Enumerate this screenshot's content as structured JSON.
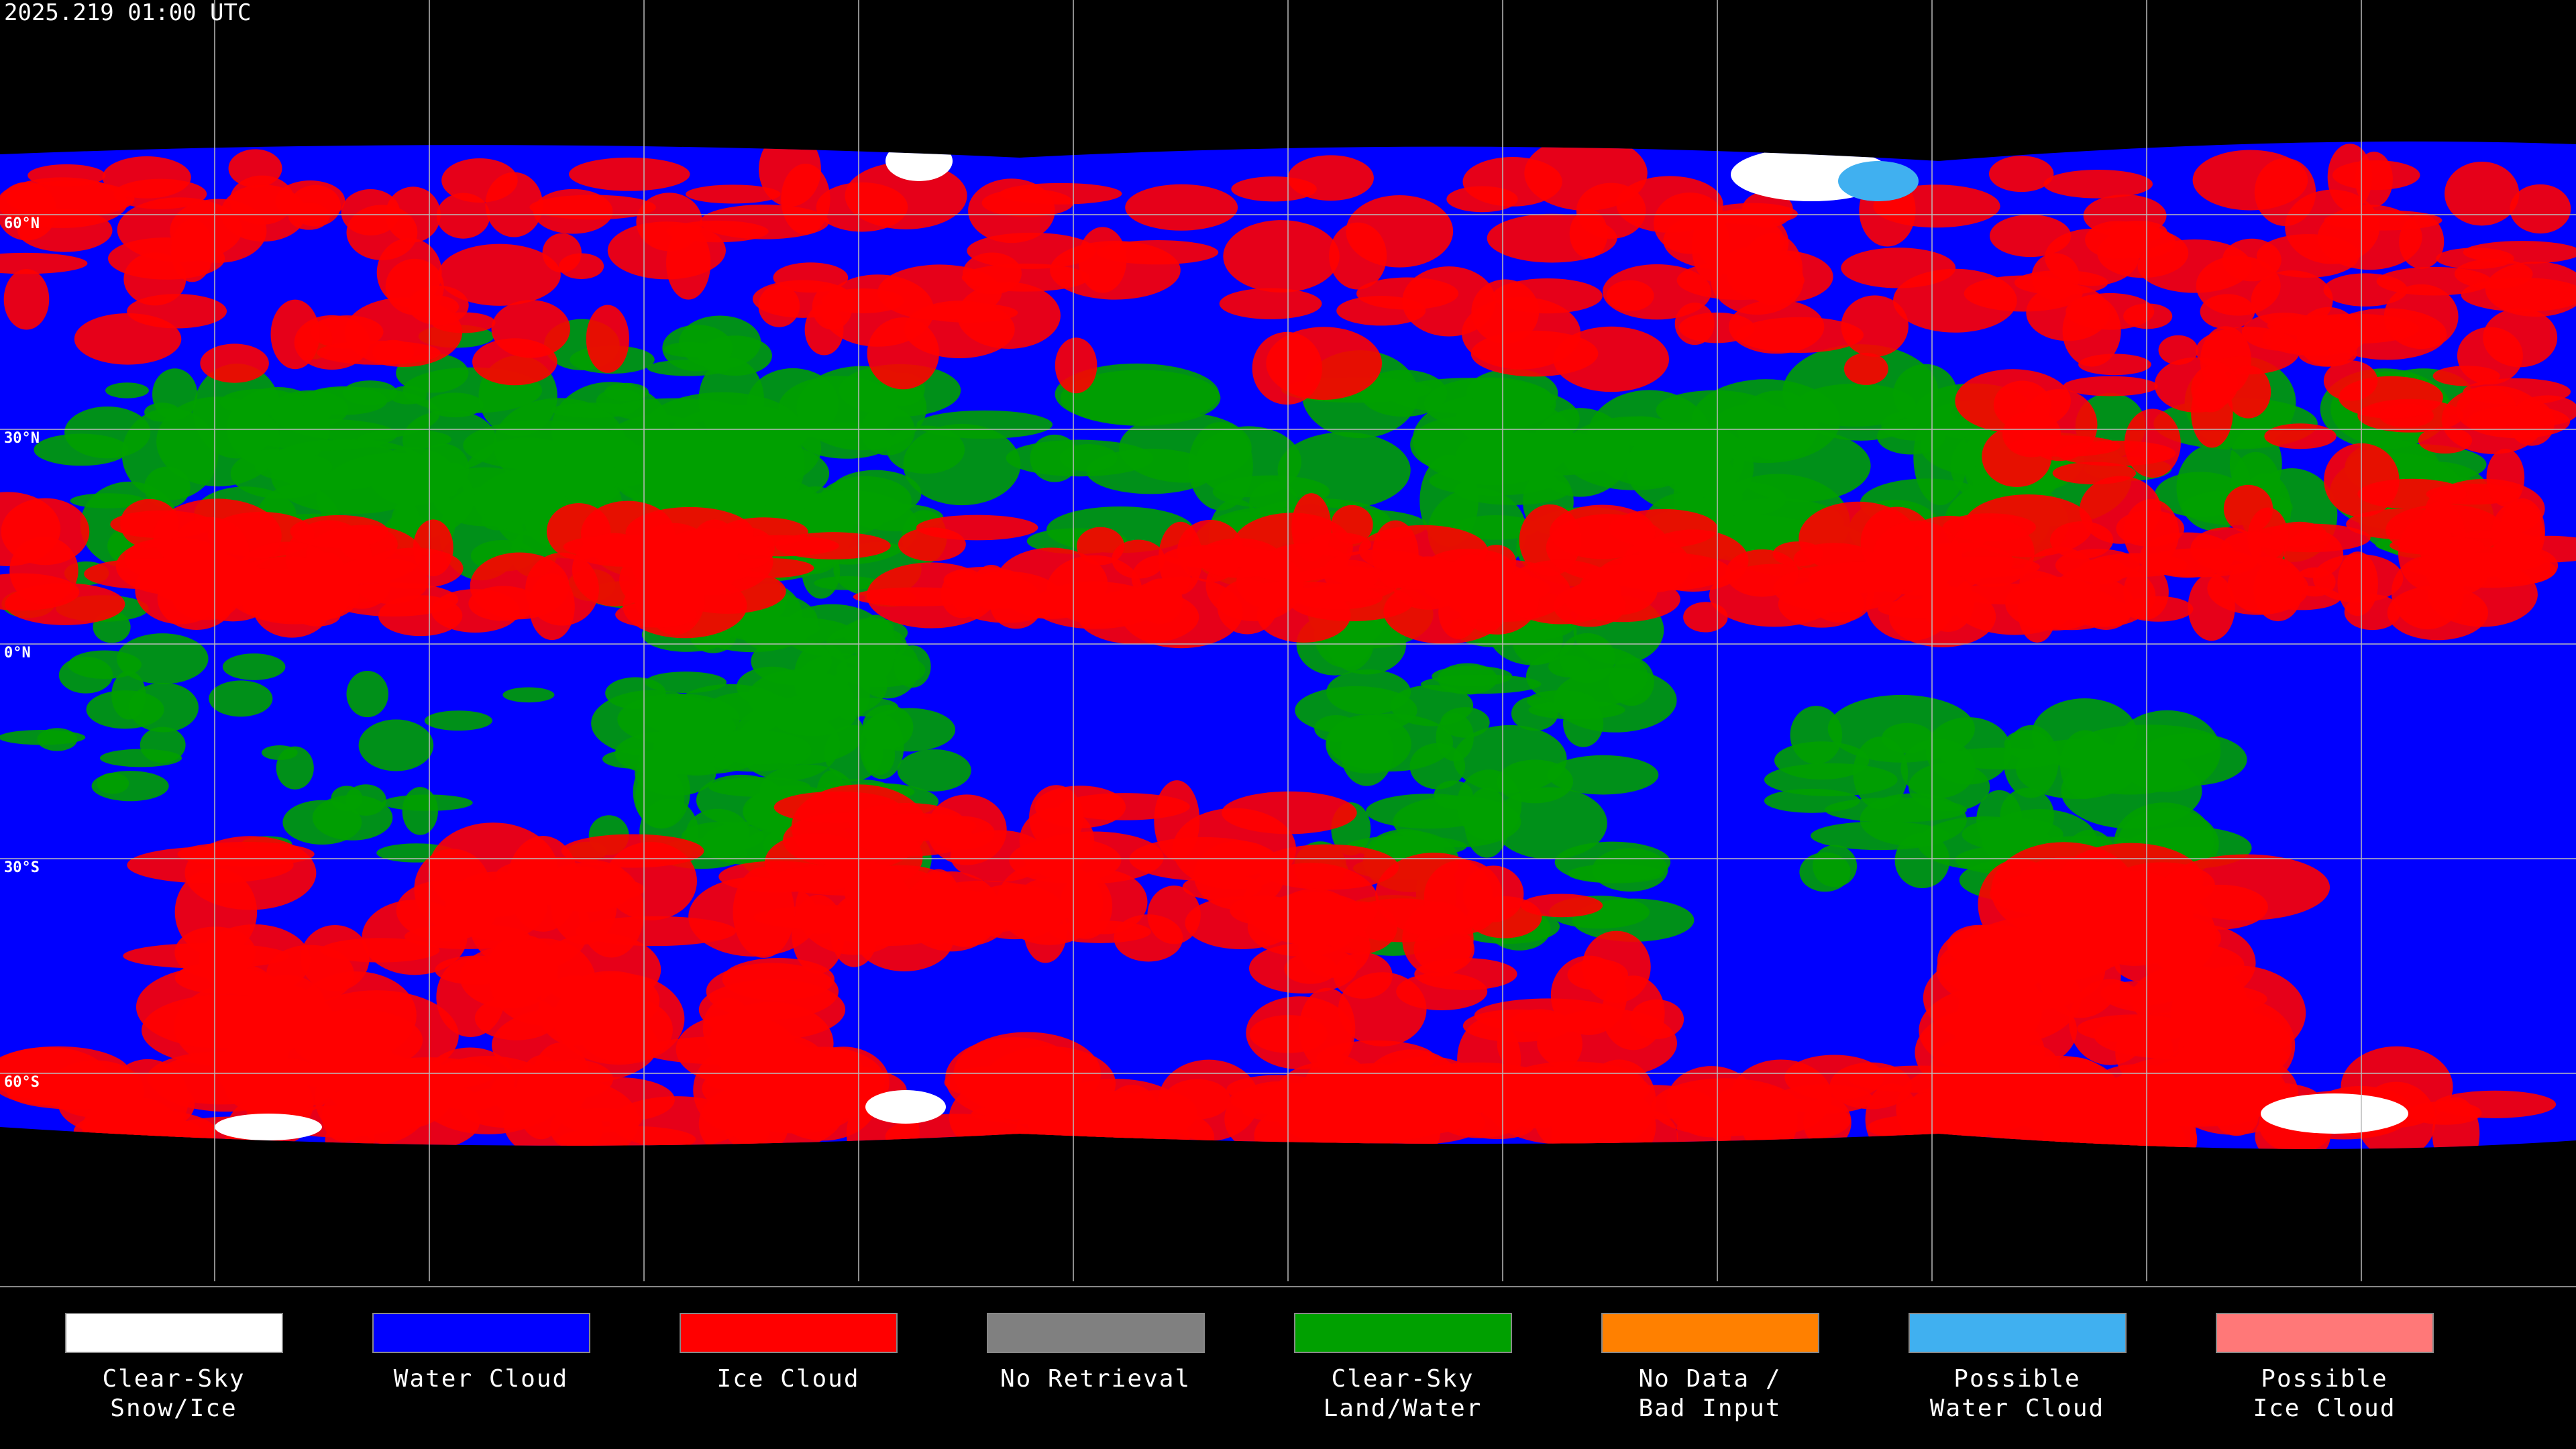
{
  "header": {
    "title": "2025.219 01:00 UTC"
  },
  "latitude_labels": [
    "60°N",
    "30°N",
    "0°N",
    "30°S",
    "60°S"
  ],
  "legend": [
    {
      "color": "#ffffff",
      "label": [
        "Clear-Sky",
        "Snow/Ice"
      ]
    },
    {
      "color": "#0000ff",
      "label": [
        "Water Cloud"
      ]
    },
    {
      "color": "#ff0000",
      "label": [
        "Ice Cloud"
      ]
    },
    {
      "color": "#808080",
      "label": [
        "No Retrieval"
      ]
    },
    {
      "color": "#00a000",
      "label": [
        "Clear-Sky",
        "Land/Water"
      ]
    },
    {
      "color": "#ff8000",
      "label": [
        "No Data /",
        "Bad Input"
      ]
    },
    {
      "color": "#40b0f0",
      "label": [
        "Possible",
        "Water Cloud"
      ]
    },
    {
      "color": "#ff7878",
      "label": [
        "Possible",
        "Ice Cloud"
      ]
    }
  ]
}
